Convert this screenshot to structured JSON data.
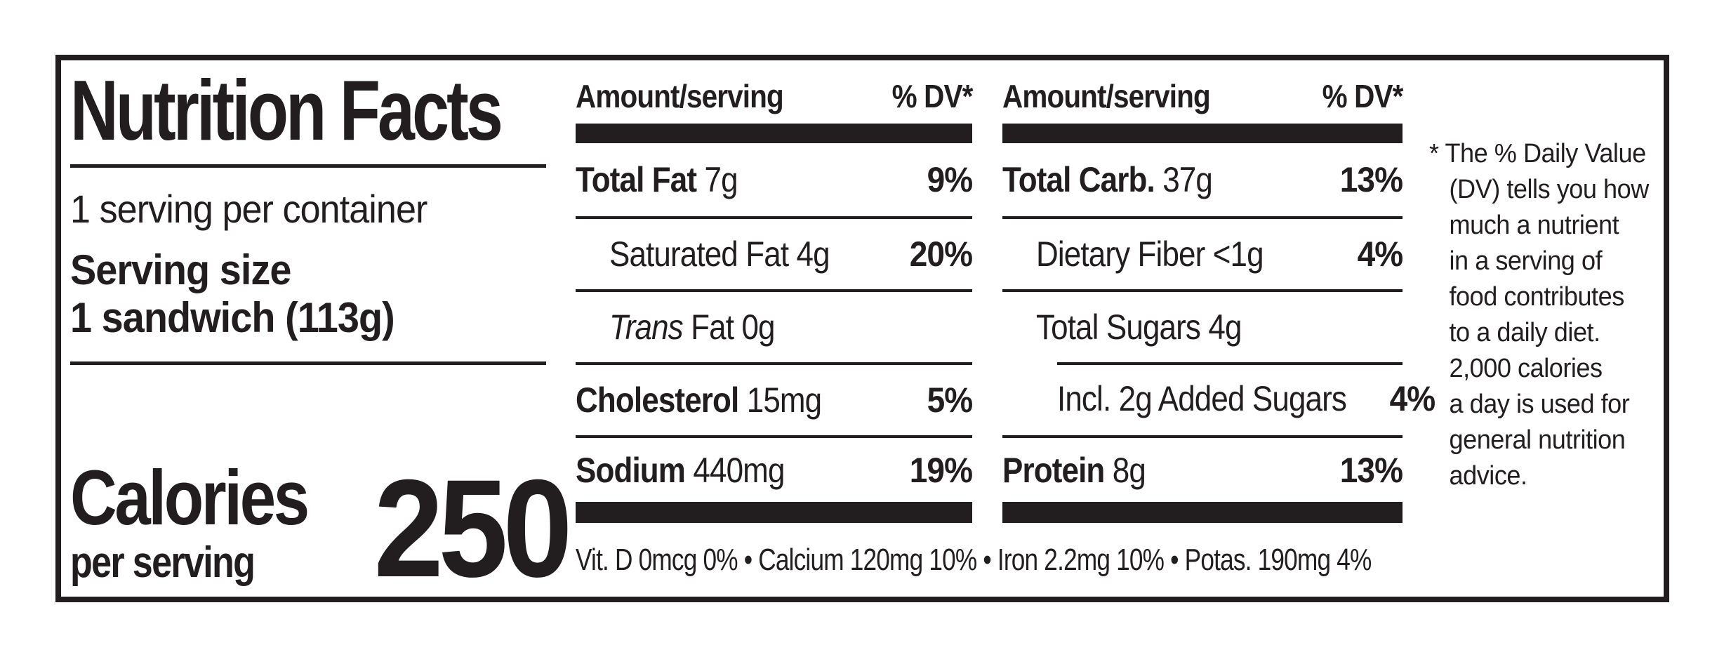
{
  "colors": {
    "ink": "#221e1f",
    "background": "#ffffff"
  },
  "label": {
    "title": "Nutrition Facts",
    "servings_per_container": "1 serving per container",
    "serving_size_label": "Serving size",
    "serving_size_value": "1 sandwich (113g)",
    "calories": {
      "label": "Calories",
      "sublabel": "per serving",
      "value": "250"
    },
    "column_header": {
      "amount": "Amount/serving",
      "dv": "% DV*"
    },
    "nutrient_columns": [
      {
        "rows": [
          {
            "name_bold": "Total Fat",
            "name": "7g",
            "dv": "9%",
            "indent": 0,
            "divider": "none"
          },
          {
            "name": "Saturated Fat 4g",
            "dv": "20%",
            "indent": 1,
            "divider": "full"
          },
          {
            "name_italic": "Trans",
            "name": "Fat 0g",
            "dv": "",
            "indent": 1,
            "divider": "full"
          },
          {
            "name_bold": "Cholesterol",
            "name": "15mg",
            "dv": "5%",
            "indent": 0,
            "divider": "full"
          },
          {
            "name_bold": "Sodium",
            "name": "440mg",
            "dv": "19%",
            "indent": 0,
            "divider": "full"
          }
        ]
      },
      {
        "rows": [
          {
            "name_bold": "Total Carb.",
            "name": "37g",
            "dv": "13%",
            "indent": 0,
            "divider": "none"
          },
          {
            "name": "Dietary Fiber <1g",
            "dv": "4%",
            "indent": 1,
            "divider": "full"
          },
          {
            "name": "Total Sugars 4g",
            "dv": "",
            "indent": 1,
            "divider": "full"
          },
          {
            "name": "Incl. 2g Added Sugars",
            "dv": "4%",
            "indent": 2,
            "divider": "indent"
          },
          {
            "name_bold": "Protein",
            "name": "8g",
            "dv": "13%",
            "indent": 0,
            "divider": "full"
          }
        ]
      }
    ],
    "micronutrient_line": "Vit. D 0mcg 0% • Calcium 120mg 10% • Iron 2.2mg 10% • Potas. 190mg 4%",
    "footnote": "* The % Daily Value\n(DV) tells you how\nmuch a nutrient\nin a serving of\nfood contributes\nto a daily diet.\n2,000 calories\na day is used for\ngeneral nutrition\nadvice."
  }
}
